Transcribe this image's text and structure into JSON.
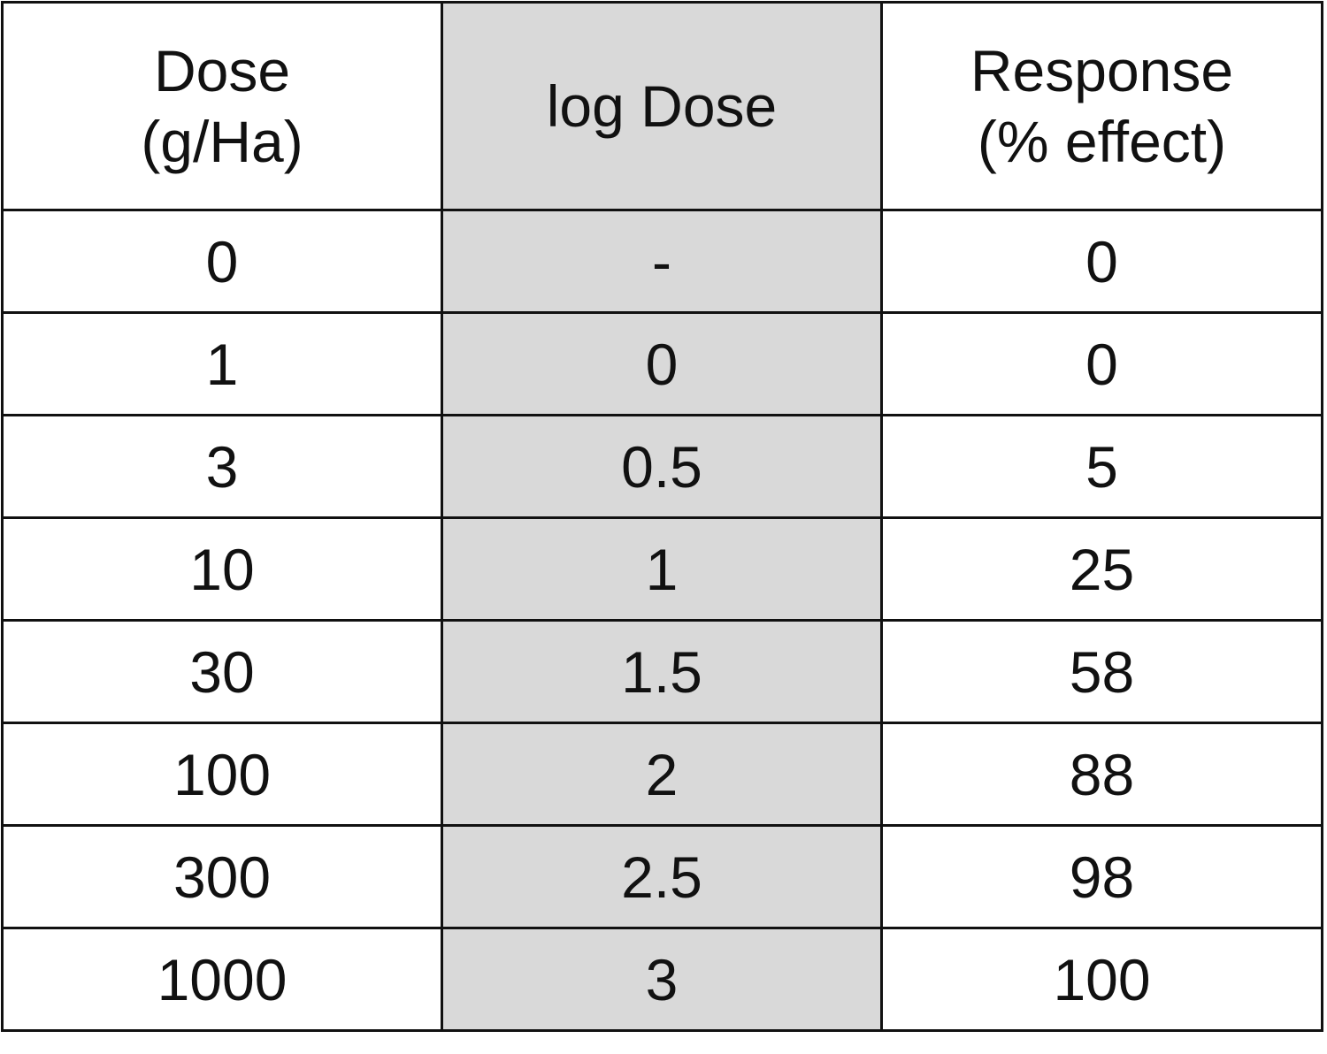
{
  "table": {
    "header": [
      [
        "Dose",
        "(g/Ha)"
      ],
      [
        "log Dose"
      ],
      [
        "Response",
        "(% effect)"
      ]
    ],
    "rows": [
      [
        0,
        "-",
        0
      ],
      [
        1,
        0,
        0
      ],
      [
        3,
        0.5,
        5
      ],
      [
        10,
        1,
        25
      ],
      [
        30,
        1.5,
        58
      ],
      [
        100,
        2,
        88
      ],
      [
        300,
        2.5,
        98
      ],
      [
        1000,
        3,
        100
      ]
    ]
  }
}
